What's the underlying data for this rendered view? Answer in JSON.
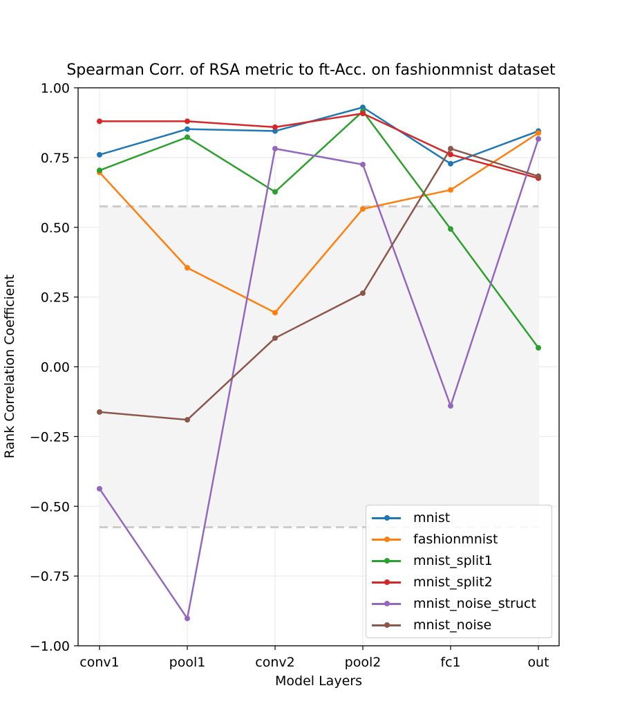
{
  "chart_data": {
    "type": "line",
    "title": "Spearman Corr. of RSA metric to ft-Acc. on fashionmnist dataset",
    "xlabel": "Model Layers",
    "ylabel": "Rank Correlation Coefficient",
    "categories": [
      "conv1",
      "pool1",
      "conv2",
      "pool2",
      "fc1",
      "out"
    ],
    "ylim": [
      -1.0,
      1.0
    ],
    "yticks": [
      "−1.00",
      "−0.75",
      "−0.50",
      "−0.25",
      "0.00",
      "0.25",
      "0.50",
      "0.75",
      "1.00"
    ],
    "ytick_values": [
      -1.0,
      -0.75,
      -0.5,
      -0.25,
      0.0,
      0.25,
      0.5,
      0.75,
      1.0
    ],
    "grid": true,
    "legend_position": "lower-right",
    "significance_band": [
      -0.575,
      0.575
    ],
    "series": [
      {
        "name": "mnist",
        "color": "#1f77b4",
        "values": [
          0.76,
          0.852,
          0.845,
          0.93,
          0.728,
          0.845
        ]
      },
      {
        "name": "fashionmnist",
        "color": "#ff7f0e",
        "values": [
          0.697,
          0.355,
          0.194,
          0.566,
          0.634,
          0.838
        ]
      },
      {
        "name": "mnist_split1",
        "color": "#2ca02c",
        "values": [
          0.704,
          0.823,
          0.627,
          0.916,
          0.494,
          0.068
        ]
      },
      {
        "name": "mnist_split2",
        "color": "#d62728",
        "values": [
          0.88,
          0.88,
          0.859,
          0.908,
          0.761,
          0.676
        ]
      },
      {
        "name": "mnist_noise_struct",
        "color": "#9467bd",
        "values": [
          -0.437,
          -0.902,
          0.782,
          0.725,
          -0.14,
          0.817
        ]
      },
      {
        "name": "mnist_noise",
        "color": "#8c564b",
        "values": [
          -0.162,
          -0.19,
          0.103,
          0.264,
          0.782,
          0.683
        ]
      }
    ]
  }
}
